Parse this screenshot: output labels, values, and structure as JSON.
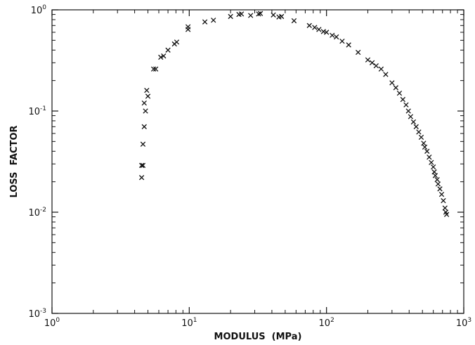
{
  "chart_data": {
    "type": "scatter",
    "title": "",
    "xlabel": "MODULUS  (MPa)",
    "ylabel": "LOSS  FACTOR",
    "xscale": "log",
    "yscale": "log",
    "xlim": [
      1,
      1000
    ],
    "ylim": [
      0.001,
      1
    ],
    "grid": false,
    "marker": "x",
    "x_ticks": [
      {
        "value": 1,
        "base": "10",
        "exp": "0"
      },
      {
        "value": 10,
        "base": "10",
        "exp": "1"
      },
      {
        "value": 100,
        "base": "10",
        "exp": "2"
      },
      {
        "value": 1000,
        "base": "10",
        "exp": "3"
      }
    ],
    "y_ticks": [
      {
        "value": 0.001,
        "base": "10",
        "exp": "-3"
      },
      {
        "value": 0.01,
        "base": "10",
        "exp": "-2"
      },
      {
        "value": 0.1,
        "base": "10",
        "exp": "-1"
      },
      {
        "value": 1,
        "base": "10",
        "exp": "0"
      }
    ],
    "points": [
      [
        4.5,
        0.022
      ],
      [
        4.5,
        0.029
      ],
      [
        4.6,
        0.029
      ],
      [
        4.6,
        0.047
      ],
      [
        4.7,
        0.07
      ],
      [
        4.8,
        0.1
      ],
      [
        4.7,
        0.12
      ],
      [
        4.9,
        0.16
      ],
      [
        5.0,
        0.14
      ],
      [
        5.5,
        0.26
      ],
      [
        5.7,
        0.26
      ],
      [
        6.2,
        0.34
      ],
      [
        6.5,
        0.35
      ],
      [
        7.0,
        0.4
      ],
      [
        7.8,
        0.46
      ],
      [
        8.1,
        0.48
      ],
      [
        9.8,
        0.64
      ],
      [
        9.8,
        0.68
      ],
      [
        13.0,
        0.76
      ],
      [
        15.0,
        0.79
      ],
      [
        20.0,
        0.86
      ],
      [
        23.0,
        0.9
      ],
      [
        24.0,
        0.91
      ],
      [
        28.0,
        0.88
      ],
      [
        32.0,
        0.91
      ],
      [
        33.0,
        0.92
      ],
      [
        41.0,
        0.89
      ],
      [
        45.0,
        0.85
      ],
      [
        47.0,
        0.86
      ],
      [
        58.0,
        0.78
      ],
      [
        75.0,
        0.7
      ],
      [
        82.0,
        0.67
      ],
      [
        88.0,
        0.64
      ],
      [
        95.0,
        0.61
      ],
      [
        100.0,
        0.6
      ],
      [
        110.0,
        0.56
      ],
      [
        118.0,
        0.54
      ],
      [
        130.0,
        0.49
      ],
      [
        145.0,
        0.45
      ],
      [
        170.0,
        0.38
      ],
      [
        200.0,
        0.32
      ],
      [
        215.0,
        0.3
      ],
      [
        230.0,
        0.28
      ],
      [
        250.0,
        0.26
      ],
      [
        270.0,
        0.23
      ],
      [
        300.0,
        0.19
      ],
      [
        320.0,
        0.17
      ],
      [
        340.0,
        0.15
      ],
      [
        360.0,
        0.13
      ],
      [
        380.0,
        0.115
      ],
      [
        395.0,
        0.1
      ],
      [
        410.0,
        0.088
      ],
      [
        430.0,
        0.078
      ],
      [
        450.0,
        0.07
      ],
      [
        470.0,
        0.062
      ],
      [
        490.0,
        0.055
      ],
      [
        510.0,
        0.048
      ],
      [
        520.0,
        0.044
      ],
      [
        540.0,
        0.04
      ],
      [
        560.0,
        0.035
      ],
      [
        580.0,
        0.031
      ],
      [
        600.0,
        0.028
      ],
      [
        610.0,
        0.025
      ],
      [
        620.0,
        0.023
      ],
      [
        640.0,
        0.021
      ],
      [
        650.0,
        0.019
      ],
      [
        670.0,
        0.017
      ],
      [
        690.0,
        0.015
      ],
      [
        710.0,
        0.013
      ],
      [
        730.0,
        0.011
      ],
      [
        740.0,
        0.01
      ],
      [
        750.0,
        0.0095
      ]
    ]
  }
}
